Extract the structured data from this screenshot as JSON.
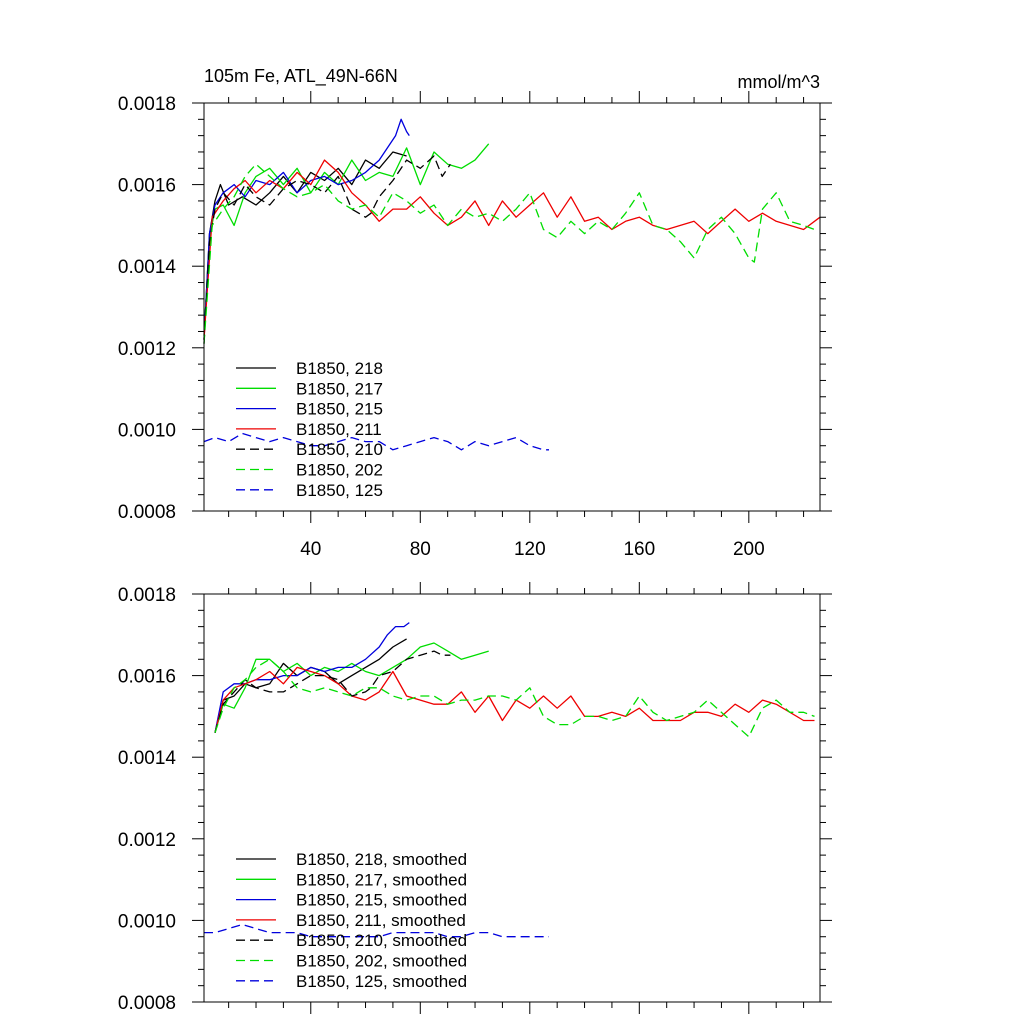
{
  "chart_data": [
    {
      "type": "line",
      "title": "105m Fe, ATL_49N-66N",
      "units": "mmol/m^3",
      "xlim": [
        1,
        226
      ],
      "ylim": [
        0.0008,
        0.0018
      ],
      "yticks": [
        0.0008,
        0.001,
        0.0012,
        0.0014,
        0.0016,
        0.0018
      ],
      "ytick_labels": [
        "0.0008",
        "0.0010",
        "0.0012",
        "0.0014",
        "0.0016",
        "0.0018"
      ],
      "xticks": [
        40,
        80,
        120,
        160,
        200
      ],
      "xtick_labels": [
        "40",
        "80",
        "120",
        "160",
        "200"
      ],
      "legend_position": "bottom-left",
      "series": [
        {
          "name": "B1850, 218",
          "color": "#000000",
          "dash": "solid",
          "x": [
            1,
            3,
            5,
            7,
            10,
            15,
            20,
            25,
            30,
            35,
            40,
            45,
            50,
            55,
            60,
            65,
            70,
            75
          ],
          "values": [
            0.00122,
            0.00148,
            0.00156,
            0.0016,
            0.00155,
            0.00157,
            0.00155,
            0.00158,
            0.00162,
            0.00158,
            0.00163,
            0.00161,
            0.00164,
            0.0016,
            0.00166,
            0.00164,
            0.00168,
            0.00167
          ]
        },
        {
          "name": "B1850, 217",
          "color": "#00dd00",
          "dash": "solid",
          "x": [
            1,
            3,
            5,
            8,
            12,
            16,
            20,
            25,
            30,
            35,
            40,
            45,
            50,
            55,
            60,
            65,
            70,
            75,
            80,
            85,
            90,
            95,
            100,
            105
          ],
          "values": [
            0.00123,
            0.00147,
            0.00154,
            0.00155,
            0.0015,
            0.00158,
            0.00162,
            0.00164,
            0.0016,
            0.00164,
            0.00158,
            0.00163,
            0.0016,
            0.00166,
            0.00161,
            0.00163,
            0.00162,
            0.00169,
            0.0016,
            0.00168,
            0.00165,
            0.00164,
            0.00166,
            0.0017
          ]
        },
        {
          "name": "B1850, 215",
          "color": "#0000dd",
          "dash": "solid",
          "x": [
            1,
            3,
            5,
            8,
            12,
            16,
            20,
            25,
            30,
            35,
            40,
            45,
            50,
            55,
            60,
            65,
            68,
            71,
            73,
            75,
            76
          ],
          "values": [
            0.00122,
            0.00148,
            0.00155,
            0.00158,
            0.0016,
            0.00157,
            0.00161,
            0.0016,
            0.00163,
            0.00158,
            0.00161,
            0.00162,
            0.0016,
            0.00161,
            0.00163,
            0.00166,
            0.00169,
            0.00172,
            0.00176,
            0.00173,
            0.00172
          ]
        },
        {
          "name": "B1850, 211",
          "color": "#ee0000",
          "dash": "solid",
          "x": [
            1,
            4,
            8,
            12,
            16,
            20,
            25,
            30,
            35,
            40,
            45,
            50,
            55,
            60,
            65,
            70,
            75,
            80,
            85,
            90,
            95,
            100,
            105,
            110,
            115,
            120,
            125,
            130,
            135,
            140,
            145,
            150,
            155,
            160,
            165,
            170,
            175,
            180,
            185,
            190,
            195,
            200,
            205,
            210,
            215,
            220,
            226
          ],
          "values": [
            0.00122,
            0.00152,
            0.00156,
            0.00159,
            0.00161,
            0.00158,
            0.00161,
            0.00159,
            0.00163,
            0.0016,
            0.00166,
            0.00163,
            0.00158,
            0.00155,
            0.00151,
            0.00154,
            0.00154,
            0.00157,
            0.00153,
            0.0015,
            0.00152,
            0.00156,
            0.0015,
            0.00156,
            0.00152,
            0.00155,
            0.00158,
            0.00152,
            0.00157,
            0.00151,
            0.00152,
            0.00149,
            0.00151,
            0.00152,
            0.0015,
            0.00149,
            0.0015,
            0.00151,
            0.00148,
            0.00151,
            0.00154,
            0.00151,
            0.00153,
            0.00151,
            0.0015,
            0.00149,
            0.00152
          ]
        },
        {
          "name": "B1850, 210",
          "color": "#000000",
          "dash": "dash",
          "x": [
            1,
            3,
            5,
            8,
            12,
            16,
            20,
            25,
            30,
            35,
            40,
            45,
            50,
            55,
            60,
            62,
            65,
            70,
            75,
            80,
            85,
            88,
            91
          ],
          "values": [
            0.00121,
            0.00146,
            0.00154,
            0.00158,
            0.00155,
            0.0016,
            0.00157,
            0.00155,
            0.00159,
            0.00161,
            0.0016,
            0.00158,
            0.00162,
            0.00154,
            0.00152,
            0.00153,
            0.00157,
            0.00161,
            0.00166,
            0.00164,
            0.00167,
            0.00162,
            0.00165
          ]
        },
        {
          "name": "B1850, 202",
          "color": "#00dd00",
          "dash": "dash",
          "x": [
            1,
            4,
            8,
            12,
            16,
            20,
            25,
            30,
            35,
            40,
            45,
            50,
            55,
            60,
            65,
            70,
            75,
            80,
            85,
            90,
            95,
            100,
            105,
            110,
            115,
            120,
            125,
            130,
            135,
            140,
            145,
            150,
            155,
            160,
            165,
            170,
            175,
            180,
            185,
            190,
            195,
            200,
            202,
            205,
            210,
            215,
            220,
            224
          ],
          "values": [
            0.00121,
            0.0015,
            0.00154,
            0.00157,
            0.00162,
            0.00165,
            0.00162,
            0.00159,
            0.00157,
            0.00158,
            0.0016,
            0.00156,
            0.00154,
            0.00155,
            0.00152,
            0.00158,
            0.00156,
            0.00153,
            0.00155,
            0.0015,
            0.00154,
            0.00152,
            0.00153,
            0.00151,
            0.00154,
            0.00158,
            0.00149,
            0.00147,
            0.00151,
            0.00148,
            0.00151,
            0.00149,
            0.00153,
            0.00158,
            0.0015,
            0.00149,
            0.00146,
            0.00142,
            0.00149,
            0.00152,
            0.00148,
            0.00142,
            0.00141,
            0.00154,
            0.00158,
            0.00151,
            0.0015,
            0.00149
          ]
        },
        {
          "name": "B1850, 125",
          "color": "#0000dd",
          "dash": "dash",
          "x": [
            1,
            5,
            10,
            15,
            20,
            25,
            30,
            35,
            40,
            45,
            50,
            55,
            60,
            65,
            70,
            75,
            80,
            85,
            90,
            95,
            100,
            105,
            110,
            115,
            120,
            125,
            127
          ],
          "values": [
            0.00097,
            0.00098,
            0.00097,
            0.00099,
            0.00098,
            0.00097,
            0.00098,
            0.00097,
            0.00096,
            0.00096,
            0.00097,
            0.00098,
            0.00097,
            0.00097,
            0.00095,
            0.00096,
            0.00097,
            0.00098,
            0.00097,
            0.00095,
            0.00097,
            0.00096,
            0.00097,
            0.00098,
            0.00096,
            0.00095,
            0.00095
          ]
        }
      ]
    },
    {
      "type": "line",
      "title": "",
      "xlim": [
        1,
        226
      ],
      "ylim": [
        0.0008,
        0.0018
      ],
      "yticks": [
        0.0008,
        0.001,
        0.0012,
        0.0014,
        0.0016,
        0.0018
      ],
      "ytick_labels": [
        "0.0008",
        "0.0010",
        "0.0012",
        "0.0014",
        "0.0016",
        "0.0018"
      ],
      "legend_position": "bottom-left",
      "series": [
        {
          "name": "B1850, 218, smoothed",
          "color": "#000000",
          "dash": "solid",
          "x": [
            5,
            8,
            12,
            16,
            20,
            25,
            30,
            35,
            40,
            45,
            50,
            55,
            60,
            65,
            70,
            75
          ],
          "values": [
            0.00146,
            0.00154,
            0.00155,
            0.00158,
            0.00157,
            0.00158,
            0.00163,
            0.0016,
            0.00162,
            0.00161,
            0.00158,
            0.0016,
            0.00162,
            0.00164,
            0.00167,
            0.00169
          ]
        },
        {
          "name": "B1850, 217, smoothed",
          "color": "#00dd00",
          "dash": "solid",
          "x": [
            5,
            8,
            12,
            16,
            20,
            25,
            30,
            35,
            40,
            45,
            50,
            55,
            60,
            65,
            70,
            75,
            80,
            85,
            90,
            95,
            100,
            105
          ],
          "values": [
            0.00146,
            0.00153,
            0.00152,
            0.00157,
            0.00164,
            0.00164,
            0.00161,
            0.00163,
            0.0016,
            0.00162,
            0.00161,
            0.00163,
            0.00161,
            0.0016,
            0.00162,
            0.00164,
            0.00167,
            0.00168,
            0.00166,
            0.00164,
            0.00165,
            0.00166
          ]
        },
        {
          "name": "B1850, 215, smoothed",
          "color": "#0000dd",
          "dash": "solid",
          "x": [
            5,
            8,
            12,
            16,
            20,
            25,
            30,
            35,
            40,
            45,
            50,
            55,
            60,
            65,
            68,
            71,
            74,
            76
          ],
          "values": [
            0.00146,
            0.00156,
            0.00158,
            0.00158,
            0.00159,
            0.00159,
            0.0016,
            0.0016,
            0.00162,
            0.00161,
            0.00162,
            0.00162,
            0.00164,
            0.00167,
            0.0017,
            0.00172,
            0.00172,
            0.00173
          ]
        },
        {
          "name": "B1850, 211, smoothed",
          "color": "#ee0000",
          "dash": "solid",
          "x": [
            5,
            8,
            12,
            16,
            20,
            25,
            30,
            35,
            40,
            45,
            50,
            55,
            60,
            65,
            70,
            75,
            80,
            85,
            90,
            95,
            100,
            105,
            110,
            115,
            120,
            125,
            130,
            135,
            140,
            145,
            150,
            155,
            160,
            165,
            170,
            175,
            180,
            185,
            190,
            195,
            200,
            205,
            210,
            215,
            220,
            224
          ],
          "values": [
            0.00146,
            0.00154,
            0.00157,
            0.00158,
            0.00159,
            0.00161,
            0.00158,
            0.00162,
            0.00161,
            0.0016,
            0.00158,
            0.00155,
            0.00154,
            0.00156,
            0.00161,
            0.00155,
            0.00154,
            0.00153,
            0.00153,
            0.00156,
            0.00151,
            0.00155,
            0.00149,
            0.00154,
            0.00152,
            0.00155,
            0.00152,
            0.00155,
            0.0015,
            0.0015,
            0.00151,
            0.0015,
            0.00152,
            0.00149,
            0.00149,
            0.00149,
            0.00151,
            0.00151,
            0.0015,
            0.00153,
            0.00151,
            0.00154,
            0.00153,
            0.00151,
            0.00149,
            0.00149
          ]
        },
        {
          "name": "B1850, 210, smoothed",
          "color": "#000000",
          "dash": "dash",
          "x": [
            5,
            8,
            12,
            16,
            20,
            25,
            30,
            35,
            40,
            45,
            50,
            55,
            60,
            62,
            65,
            70,
            75,
            80,
            85,
            88,
            91
          ],
          "values": [
            0.00146,
            0.00153,
            0.00156,
            0.00159,
            0.00157,
            0.00156,
            0.00156,
            0.00158,
            0.0016,
            0.0016,
            0.00159,
            0.00155,
            0.00156,
            0.00157,
            0.0016,
            0.00161,
            0.00164,
            0.00165,
            0.00166,
            0.00165,
            0.00165
          ]
        },
        {
          "name": "B1850, 202, smoothed",
          "color": "#00dd00",
          "dash": "dash",
          "x": [
            5,
            8,
            12,
            16,
            20,
            25,
            30,
            35,
            40,
            45,
            50,
            55,
            60,
            65,
            70,
            75,
            80,
            85,
            90,
            95,
            100,
            105,
            110,
            115,
            120,
            125,
            130,
            135,
            140,
            145,
            150,
            155,
            160,
            165,
            170,
            175,
            180,
            185,
            190,
            195,
            200,
            205,
            210,
            215,
            220,
            224
          ],
          "values": [
            0.00146,
            0.00152,
            0.00157,
            0.00159,
            0.00162,
            0.00164,
            0.00161,
            0.00157,
            0.00156,
            0.00157,
            0.00156,
            0.00155,
            0.00157,
            0.00157,
            0.00155,
            0.00154,
            0.00155,
            0.00155,
            0.00153,
            0.00154,
            0.00154,
            0.00155,
            0.00155,
            0.00154,
            0.00157,
            0.0015,
            0.00148,
            0.00148,
            0.0015,
            0.0015,
            0.00149,
            0.0015,
            0.00155,
            0.00151,
            0.00149,
            0.0015,
            0.00151,
            0.00154,
            0.00151,
            0.00148,
            0.00145,
            0.00152,
            0.00154,
            0.00151,
            0.00151,
            0.0015
          ]
        },
        {
          "name": "B1850, 125, smoothed",
          "color": "#0000dd",
          "dash": "dash",
          "x": [
            1,
            5,
            10,
            15,
            20,
            25,
            30,
            35,
            40,
            45,
            50,
            55,
            60,
            65,
            70,
            75,
            80,
            85,
            90,
            95,
            100,
            105,
            110,
            115,
            120,
            125,
            127
          ],
          "values": [
            0.00097,
            0.00097,
            0.00098,
            0.00099,
            0.00098,
            0.00097,
            0.00097,
            0.00097,
            0.00096,
            0.00096,
            0.00096,
            0.00096,
            0.00096,
            0.00096,
            0.00097,
            0.00097,
            0.00097,
            0.00097,
            0.00096,
            0.00096,
            0.00097,
            0.00097,
            0.00096,
            0.00096,
            0.00096,
            0.00096,
            0.00096
          ]
        }
      ]
    }
  ]
}
